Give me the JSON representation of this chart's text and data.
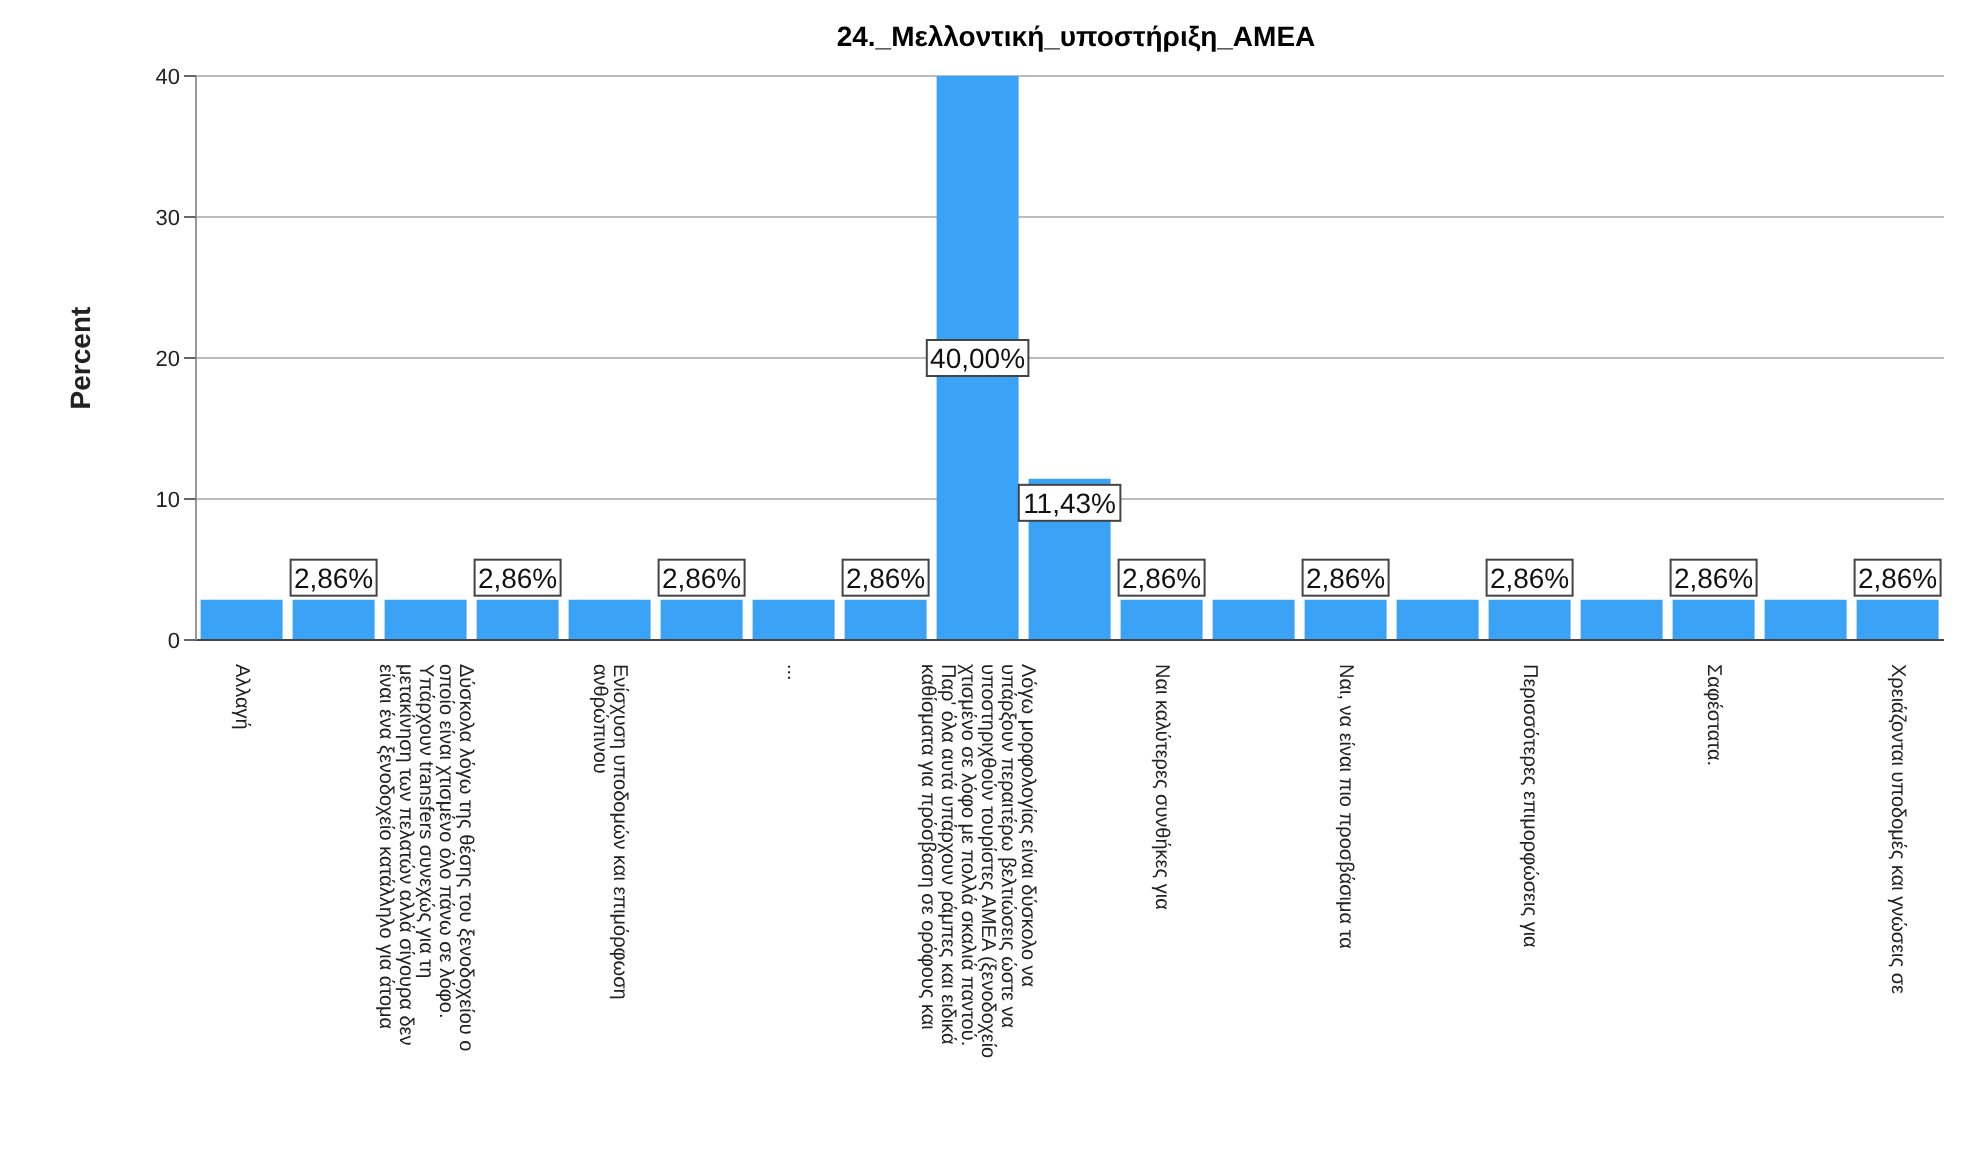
{
  "chart_data": {
    "type": "bar",
    "title": "24._Μελλοντική_υποστήριξη_ΑΜΕΑ",
    "ylabel": "Percent",
    "categories": [
      "Αλλαγή",
      null,
      "Δύσκολα λόγω της θέσης του ξενοδοχείου ο\nοποίο είναι χτισμένο όλο πάνω σε λόφο.\nΥπάρχουν transfers συνεχώς για τη\nμετακίνηση των πελατών αλλά σίγουρα δεν\nείναι ένα ξενοδοχείο κατάλληλο για άτομα",
      null,
      "Ενίσχυση υποδομών και επιμόρφωση\nανθρώπινου",
      null,
      "...",
      null,
      "Λόγω μορφολογίας είναι δύσκολο να\nυπάρξουν περαιτέρω βελτιώσεις ώστε να\nυποστηριχθούν τουρίστες ΑΜΕΑ (ξενοδοχείο\nχτισμένο σε λόφο με πολλά σκαλιά παντού.\nΠαρ' όλα αυτά υπάρχουν ράμπες και ειδικά\nκαθίσματα για πρόσβαση σε ορόφους και",
      null,
      "Ναι καλύτερες συνθήκες για",
      null,
      "Ναι, να είναι πιο προσβάσιμα τα",
      null,
      "Περισσότερες επιμορφώσεις για",
      null,
      "Σαφέστατα.",
      null,
      "Χρειάζονται υποδομές και γνώσεις σε"
    ],
    "values": [
      2.86,
      2.86,
      2.86,
      2.86,
      2.86,
      2.86,
      2.86,
      2.86,
      40,
      11.43,
      2.86,
      2.86,
      2.86,
      2.86,
      2.86,
      2.86,
      2.86,
      2.86,
      2.86
    ],
    "value_labels": [
      null,
      "2,86%",
      null,
      "2,86%",
      null,
      "2,86%",
      null,
      "2,86%",
      "40,00%",
      "11,43%",
      "2,86%",
      null,
      "2,86%",
      null,
      "2,86%",
      null,
      "2,86%",
      null,
      "2,86%"
    ],
    "color": "#3ba3f5",
    "ylim": [
      0,
      40
    ],
    "yticks": [
      0,
      10,
      20,
      30,
      40
    ],
    "grid": "y"
  }
}
